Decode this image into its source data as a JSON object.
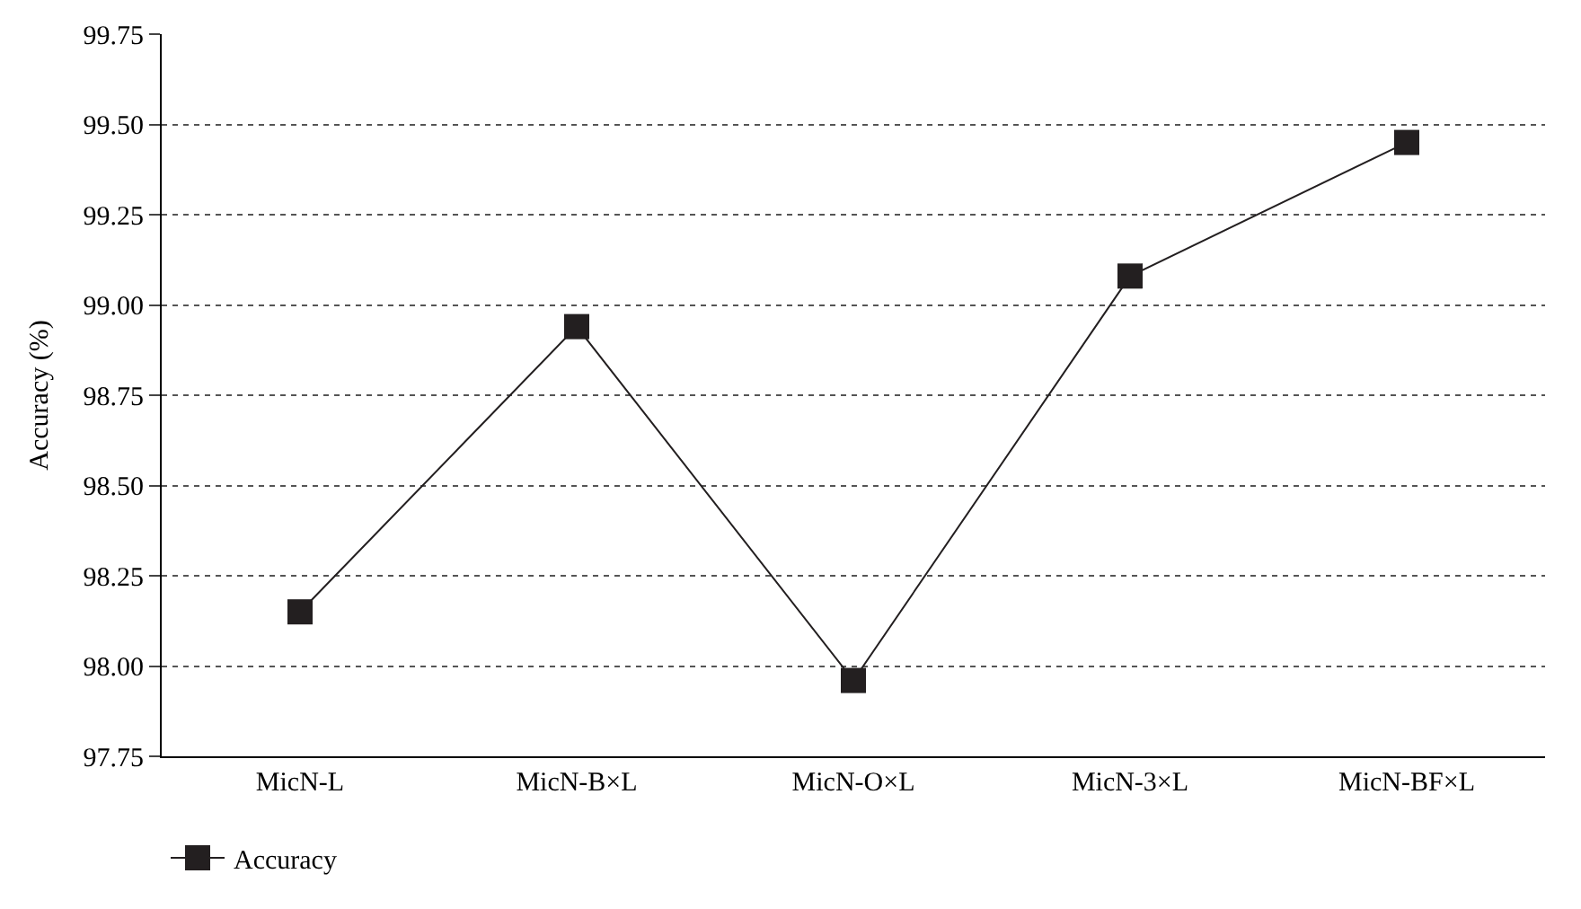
{
  "chart_data": {
    "type": "line",
    "ylabel": "Accuracy (%)",
    "categories": [
      "MicN-L",
      "MicN-B×L",
      "MicN-O×L",
      "MicN-3×L",
      "MicN-BF×L"
    ],
    "series": [
      {
        "name": "Accuracy",
        "color": "#231f20",
        "values": [
          98.15,
          98.94,
          97.96,
          99.08,
          99.45
        ]
      }
    ],
    "ylim": [
      97.75,
      99.75
    ],
    "yticks": [
      {
        "value": 97.75,
        "label": "97.75"
      },
      {
        "value": 98.0,
        "label": "98.00"
      },
      {
        "value": 98.25,
        "label": "98.25"
      },
      {
        "value": 98.5,
        "label": "98.50"
      },
      {
        "value": 98.75,
        "label": "98.75"
      },
      {
        "value": 99.0,
        "label": "99.00"
      },
      {
        "value": 99.25,
        "label": "99.25"
      },
      {
        "value": 99.5,
        "label": "99.50"
      },
      {
        "value": 99.75,
        "label": "99.75"
      }
    ],
    "grid": "y",
    "legend": "bottom left",
    "marker": "square",
    "line_style": "solid"
  }
}
